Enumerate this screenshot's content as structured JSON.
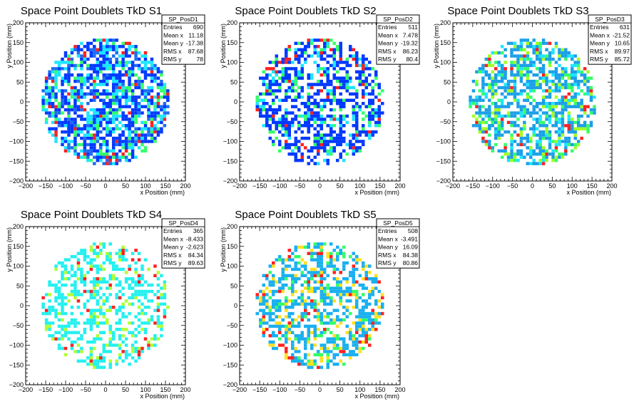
{
  "chart_data": [
    {
      "type": "heatmap",
      "title": "Space Point Doublets TkD S1",
      "xlabel": "x Position (mm)",
      "ylabel": "y Position (mm)",
      "xlim": [
        -200,
        200
      ],
      "ylim": [
        -200,
        200
      ],
      "xticks": [
        "−200",
        "−150",
        "−100",
        "−50",
        "0",
        "50",
        "100",
        "150",
        "200"
      ],
      "yticks": [
        "−200",
        "−150",
        "−100",
        "−50",
        "0",
        "50",
        "100",
        "150",
        "200"
      ],
      "stats": {
        "name": "SP_PosD1",
        "rows": [
          {
            "label": "Entries",
            "value": "690"
          },
          {
            "label": "Mean x",
            "value": "11.18"
          },
          {
            "label": "Mean y",
            "value": "-17.38"
          },
          {
            "label": "RMS x",
            "value": "87.68"
          },
          {
            "label": "RMS y",
            "value": "78"
          }
        ]
      },
      "fill_density": 0.68,
      "palette": [
        "#0038ff",
        "#0038ff",
        "#0038ff",
        "#1e6cf0",
        "#1ae6ff",
        "#1ae6ff",
        "#33ff66",
        "#ff2020"
      ]
    },
    {
      "type": "heatmap",
      "title": "Space Point Doublets TkD S2",
      "xlabel": "x Position (mm)",
      "ylabel": "y Position (mm)",
      "xlim": [
        -200,
        200
      ],
      "ylim": [
        -200,
        200
      ],
      "xticks": [
        "−200",
        "−150",
        "−100",
        "−50",
        "0",
        "50",
        "100",
        "150",
        "200"
      ],
      "yticks": [
        "−200",
        "−150",
        "−100",
        "−50",
        "0",
        "50",
        "100",
        "150",
        "200"
      ],
      "stats": {
        "name": "SP_PosD2",
        "rows": [
          {
            "label": "Entries",
            "value": "511"
          },
          {
            "label": "Mean x",
            "value": "7.478"
          },
          {
            "label": "Mean y",
            "value": "-19.32"
          },
          {
            "label": "RMS x",
            "value": "86.23"
          },
          {
            "label": "RMS y",
            "value": "80.4"
          }
        ]
      },
      "fill_density": 0.55,
      "palette": [
        "#0038ff",
        "#0038ff",
        "#0038ff",
        "#0038ff",
        "#1ae6ff",
        "#33ff66",
        "#ff2020"
      ]
    },
    {
      "type": "heatmap",
      "title": "Space Point Doublets TkD S3",
      "xlabel": "x Position (mm)",
      "ylabel": "y Position (mm)",
      "xlim": [
        -200,
        200
      ],
      "ylim": [
        -200,
        200
      ],
      "xticks": [
        "−200",
        "−150",
        "−100",
        "−50",
        "0",
        "50",
        "100",
        "150",
        "200"
      ],
      "yticks": [
        "−200",
        "−150",
        "−100",
        "−50",
        "0",
        "50",
        "100",
        "150",
        "200"
      ],
      "stats": {
        "name": "SP_PosD3",
        "rows": [
          {
            "label": "Entries",
            "value": "631"
          },
          {
            "label": "Mean x",
            "value": "-21.52"
          },
          {
            "label": "Mean y",
            "value": "10.65"
          },
          {
            "label": "RMS x",
            "value": "89.97"
          },
          {
            "label": "RMS y",
            "value": "85.72"
          }
        ]
      },
      "fill_density": 0.6,
      "palette": [
        "#1a9fe8",
        "#1a9fe8",
        "#1a9fe8",
        "#1ae6ff",
        "#33ff66",
        "#a0ff20",
        "#ff2020"
      ]
    },
    {
      "type": "heatmap",
      "title": "Space Point Doublets TkD S4",
      "xlabel": "x Position (mm)",
      "ylabel": "y Position (mm)",
      "xlim": [
        -200,
        200
      ],
      "ylim": [
        -200,
        200
      ],
      "xticks": [
        "−200",
        "−150",
        "−100",
        "−50",
        "0",
        "50",
        "100",
        "150",
        "200"
      ],
      "yticks": [
        "−200",
        "−150",
        "−100",
        "−50",
        "0",
        "50",
        "100",
        "150",
        "200"
      ],
      "stats": {
        "name": "SP_PosD4",
        "rows": [
          {
            "label": "Entries",
            "value": "365"
          },
          {
            "label": "Mean x",
            "value": "-8.433"
          },
          {
            "label": "Mean y",
            "value": "-2.623"
          },
          {
            "label": "RMS x",
            "value": "84.34"
          },
          {
            "label": "RMS y",
            "value": "89.63"
          }
        ]
      },
      "fill_density": 0.42,
      "palette": [
        "#22f0f0",
        "#22f0f0",
        "#22f0f0",
        "#22f0f0",
        "#b0ff30",
        "#ff2020"
      ]
    },
    {
      "type": "heatmap",
      "title": "Space Point Doublets TkD S5",
      "xlabel": "x Position (mm)",
      "ylabel": "y Position (mm)",
      "xlim": [
        -200,
        200
      ],
      "ylim": [
        -200,
        200
      ],
      "xticks": [
        "−200",
        "−150",
        "−100",
        "−50",
        "0",
        "50",
        "100",
        "150",
        "200"
      ],
      "yticks": [
        "−200",
        "−150",
        "−100",
        "−50",
        "0",
        "50",
        "100",
        "150",
        "200"
      ],
      "stats": {
        "name": "SP_PosD5",
        "rows": [
          {
            "label": "Entries",
            "value": "508"
          },
          {
            "label": "Mean x",
            "value": "-3.491"
          },
          {
            "label": "Mean y",
            "value": "16.09"
          },
          {
            "label": "RMS x",
            "value": "84.38"
          },
          {
            "label": "RMS y",
            "value": "80.86"
          }
        ]
      },
      "fill_density": 0.55,
      "palette": [
        "#1ab0f0",
        "#1ab0f0",
        "#1ab0f0",
        "#1ab0f0",
        "#33ff66",
        "#ffe020",
        "#ff2020"
      ]
    }
  ]
}
